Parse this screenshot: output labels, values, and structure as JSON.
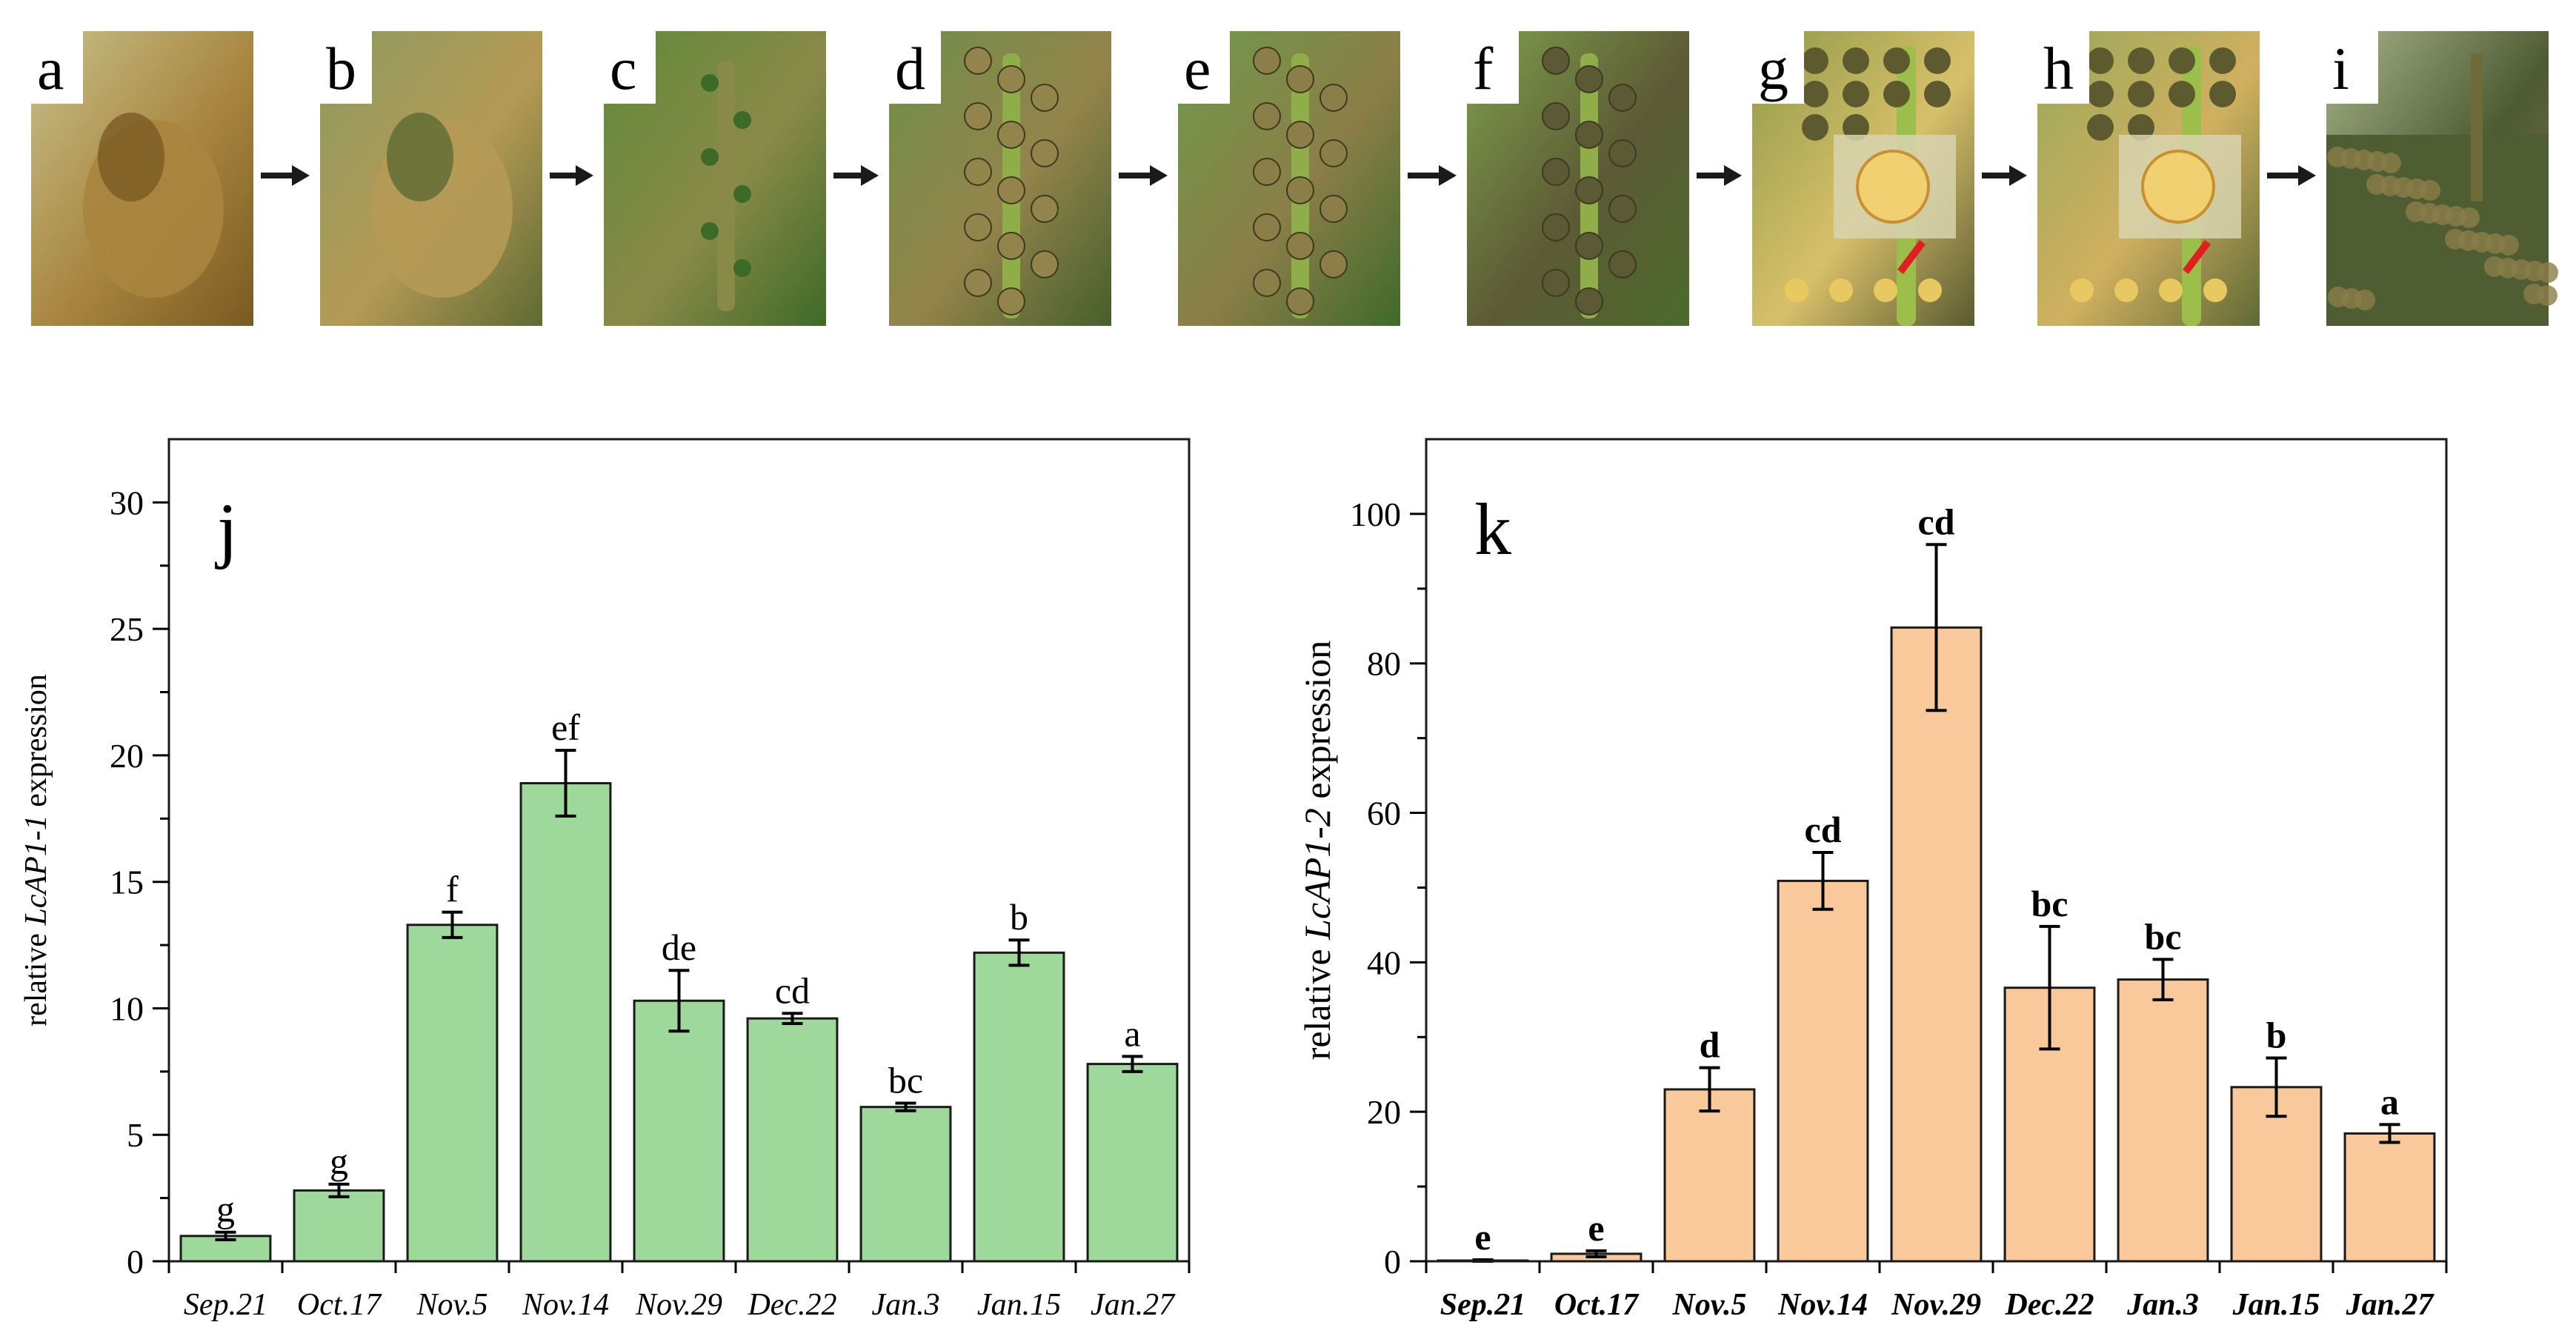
{
  "photo_panels": [
    {
      "letter": "a",
      "palette": [
        "#c7c18a",
        "#a8853f",
        "#7a5a22"
      ],
      "subject": "bud-icon"
    },
    {
      "letter": "b",
      "palette": [
        "#8c9a60",
        "#b59a55",
        "#5e6a33"
      ],
      "subject": "bud-icon"
    },
    {
      "letter": "c",
      "palette": [
        "#5f8a3a",
        "#8a8a48",
        "#3e6a28"
      ],
      "subject": "stem-icon"
    },
    {
      "letter": "d",
      "palette": [
        "#6f8f4b",
        "#93844b",
        "#465f2c"
      ],
      "subject": "inflorescence-icon"
    },
    {
      "letter": "e",
      "palette": [
        "#6f9a4a",
        "#8b7e48",
        "#3f6a2a"
      ],
      "subject": "inflorescence-icon"
    },
    {
      "letter": "f",
      "palette": [
        "#7fa04c",
        "#5c5a35",
        "#4b6a2c"
      ],
      "subject": "inflorescence-icon"
    },
    {
      "letter": "g",
      "palette": [
        "#8f9a4a",
        "#d8c06a",
        "#5a5a30"
      ],
      "subject": "flower-icon"
    },
    {
      "letter": "h",
      "palette": [
        "#98a85a",
        "#d0b060",
        "#5f6a35"
      ],
      "subject": "flower-icon"
    },
    {
      "letter": "i",
      "palette": [
        "#a9b48a",
        "#4e5a32",
        "#7e7a4c"
      ],
      "subject": "tree-icon"
    }
  ],
  "arrow_color": "#1a1a1a",
  "chart_data": [
    {
      "type": "bar",
      "panel_label": "j",
      "title": "",
      "xlabel": "",
      "ylabel_prefix": "relative ",
      "ylabel_gene": "LcAP1-1",
      "ylabel_suffix": " expression",
      "categories": [
        "Sep.21",
        "Oct.17",
        "Nov.5",
        "Nov.14",
        "Nov.29",
        "Dec.22",
        "Jan.3",
        "Jan.15",
        "Jan.27"
      ],
      "values": [
        1.0,
        2.8,
        13.3,
        18.9,
        10.3,
        9.6,
        6.1,
        12.2,
        7.8
      ],
      "errors": [
        0.15,
        0.25,
        0.5,
        1.3,
        1.2,
        0.2,
        0.15,
        0.5,
        0.3
      ],
      "letters": [
        "g",
        "g",
        "f",
        "ef",
        "de",
        "cd",
        "bc",
        "b",
        "a"
      ],
      "ylim": [
        0,
        32.5
      ],
      "yticks": [
        0,
        5,
        10,
        15,
        20,
        25,
        30
      ],
      "ytick_labels": [
        "0",
        "5",
        "10",
        "15",
        "20",
        "25",
        "30"
      ],
      "bar_color": "#9ed89a",
      "bold_labels": false,
      "grid": false
    },
    {
      "type": "bar",
      "panel_label": "k",
      "title": "",
      "xlabel": "",
      "ylabel_prefix": "relative ",
      "ylabel_gene": "LcAP1-2",
      "ylabel_suffix": " expression",
      "categories": [
        "Sep.21",
        "Oct.17",
        "Nov.5",
        "Nov.14",
        "Nov.29",
        "Dec.22",
        "Jan.3",
        "Jan.15",
        "Jan.27"
      ],
      "values": [
        0.1,
        1.0,
        23.0,
        50.9,
        84.8,
        36.6,
        37.7,
        23.3,
        17.1
      ],
      "errors": [
        0.1,
        0.4,
        2.9,
        3.8,
        11.1,
        8.2,
        2.7,
        3.9,
        1.2
      ],
      "letters": [
        "e",
        "e",
        "d",
        "cd",
        "cd",
        "bc",
        "bc",
        "b",
        "a"
      ],
      "ylim": [
        0,
        110
      ],
      "yticks": [
        0,
        20,
        40,
        60,
        80,
        100
      ],
      "ytick_labels": [
        "0",
        "20",
        "40",
        "60",
        "80",
        "100"
      ],
      "bar_color": "#f9c89b",
      "bold_labels": true,
      "grid": false
    }
  ]
}
